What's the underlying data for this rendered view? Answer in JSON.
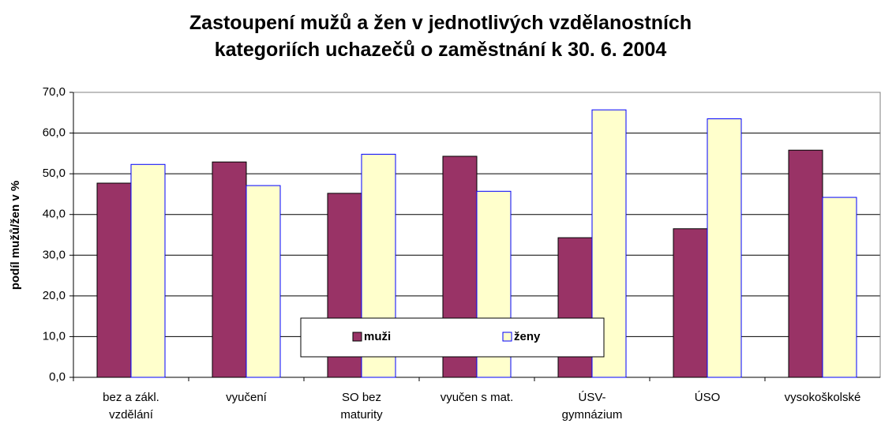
{
  "chart_data": {
    "type": "bar",
    "title": "Zastoupení mužů a žen v jednotlivých vzdělanostních\nkategoriích uchazečů o zaměstnání k 30. 6. 2004",
    "y_label": "podíl mužů/žen v %",
    "categories": [
      "bez a zákl.\nvzdělání",
      "vyučení",
      "SO bez\nmaturity",
      "vyučen s mat.",
      "ÚSV-\ngymnázium",
      "ÚSO",
      "vysokoškolské"
    ],
    "series": [
      {
        "name": "muži",
        "color": "#993366",
        "values": [
          47.7,
          52.9,
          45.2,
          54.3,
          34.3,
          36.5,
          55.8
        ]
      },
      {
        "name": "ženy",
        "color": "#ffffcc",
        "values": [
          52.3,
          47.1,
          54.8,
          45.7,
          65.7,
          63.5,
          44.2
        ]
      }
    ],
    "ylim": [
      0,
      70
    ],
    "yticks": [
      {
        "value": 0,
        "label": "0,0"
      },
      {
        "value": 10,
        "label": "10,0"
      },
      {
        "value": 20,
        "label": "20,0"
      },
      {
        "value": 30,
        "label": "30,0"
      },
      {
        "value": 40,
        "label": "40,0"
      },
      {
        "value": 50,
        "label": "50,0"
      },
      {
        "value": 60,
        "label": "60,0"
      },
      {
        "value": 70,
        "label": "70,0"
      }
    ],
    "grid": true
  }
}
